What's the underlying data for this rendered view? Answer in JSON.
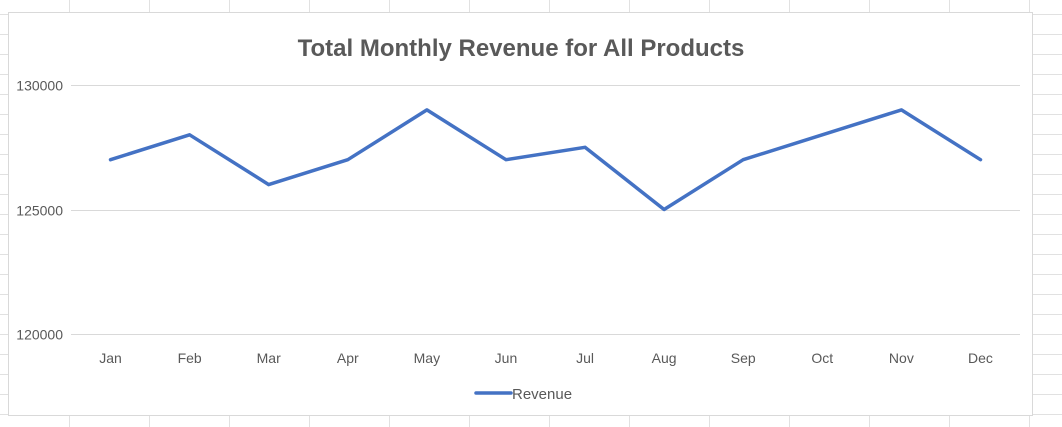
{
  "chart_data": {
    "type": "line",
    "title": "Total Monthly Revenue for All Products",
    "xlabel": "",
    "ylabel": "",
    "categories": [
      "Jan",
      "Feb",
      "Mar",
      "Apr",
      "May",
      "Jun",
      "Jul",
      "Aug",
      "Sep",
      "Oct",
      "Nov",
      "Dec"
    ],
    "series": [
      {
        "name": "Revenue",
        "color": "#4472C4",
        "values": [
          127000,
          128000,
          126000,
          127000,
          129000,
          127000,
          127500,
          125000,
          127000,
          128000,
          129000,
          127000
        ]
      }
    ],
    "ylim": [
      120000,
      130000
    ],
    "yticks": [
      "120000",
      "125000",
      "130000"
    ],
    "grid": true,
    "legend_position": "bottom",
    "gridline_color": "#d9d9d9",
    "text_color": "#595959"
  }
}
